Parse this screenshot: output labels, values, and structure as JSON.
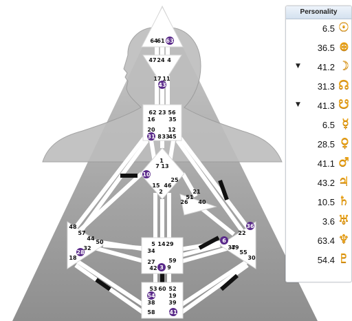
{
  "personality": {
    "title": "Personality",
    "accent_color": "#f0a818",
    "planets": [
      {
        "value": "6.5",
        "marker": "",
        "icon": "sun-icon",
        "glyph": "☉"
      },
      {
        "value": "36.5",
        "marker": "",
        "icon": "earth-icon",
        "glyph": "⊕"
      },
      {
        "value": "41.2",
        "marker": "▼",
        "icon": "moon-icon",
        "glyph": "☽"
      },
      {
        "value": "31.3",
        "marker": "",
        "icon": "north-node-icon",
        "glyph": "☊"
      },
      {
        "value": "41.3",
        "marker": "▼",
        "icon": "south-node-icon",
        "glyph": "☋"
      },
      {
        "value": "6.5",
        "marker": "",
        "icon": "mercury-icon",
        "glyph": "☿"
      },
      {
        "value": "28.5",
        "marker": "",
        "icon": "venus-icon",
        "glyph": "♀"
      },
      {
        "value": "41.1",
        "marker": "",
        "icon": "mars-icon",
        "glyph": "♂"
      },
      {
        "value": "43.2",
        "marker": "",
        "icon": "jupiter-icon",
        "glyph": "♃"
      },
      {
        "value": "10.5",
        "marker": "",
        "icon": "saturn-icon",
        "glyph": "♄"
      },
      {
        "value": "3.6",
        "marker": "",
        "icon": "uranus-icon",
        "glyph": "♅"
      },
      {
        "value": "63.4",
        "marker": "",
        "icon": "neptune-icon",
        "glyph": "♆"
      },
      {
        "value": "54.4",
        "marker": "",
        "icon": "pluto-icon",
        "glyph": "♇"
      }
    ]
  },
  "bodygraph": {
    "colors": {
      "background": "#9a9a9a",
      "center": "#ffffff",
      "channel_defined": "#111111",
      "gate_highlight": "#5a2a8a"
    },
    "gates": [
      {
        "n": "64"
      },
      {
        "n": "61"
      },
      {
        "n": "63",
        "active": true
      },
      {
        "n": "47"
      },
      {
        "n": "24"
      },
      {
        "n": "4"
      },
      {
        "n": "17"
      },
      {
        "n": "11"
      },
      {
        "n": "43",
        "active": true
      },
      {
        "n": "62"
      },
      {
        "n": "23"
      },
      {
        "n": "56"
      },
      {
        "n": "16"
      },
      {
        "n": "35"
      },
      {
        "n": "20"
      },
      {
        "n": "12"
      },
      {
        "n": "31",
        "active": true
      },
      {
        "n": "8"
      },
      {
        "n": "33"
      },
      {
        "n": "45"
      },
      {
        "n": "1"
      },
      {
        "n": "7"
      },
      {
        "n": "13"
      },
      {
        "n": "10",
        "active": true
      },
      {
        "n": "25"
      },
      {
        "n": "15"
      },
      {
        "n": "46"
      },
      {
        "n": "2"
      },
      {
        "n": "21"
      },
      {
        "n": "51"
      },
      {
        "n": "26"
      },
      {
        "n": "40"
      },
      {
        "n": "48"
      },
      {
        "n": "57"
      },
      {
        "n": "44"
      },
      {
        "n": "50"
      },
      {
        "n": "32"
      },
      {
        "n": "28",
        "active": true
      },
      {
        "n": "18"
      },
      {
        "n": "36",
        "active": true
      },
      {
        "n": "22"
      },
      {
        "n": "6",
        "active": true
      },
      {
        "n": "37"
      },
      {
        "n": "49"
      },
      {
        "n": "55"
      },
      {
        "n": "30"
      },
      {
        "n": "5"
      },
      {
        "n": "14"
      },
      {
        "n": "29"
      },
      {
        "n": "34"
      },
      {
        "n": "27"
      },
      {
        "n": "59"
      },
      {
        "n": "42"
      },
      {
        "n": "3",
        "active": true
      },
      {
        "n": "9"
      },
      {
        "n": "53"
      },
      {
        "n": "60"
      },
      {
        "n": "52"
      },
      {
        "n": "54",
        "active": true
      },
      {
        "n": "19"
      },
      {
        "n": "38"
      },
      {
        "n": "39"
      },
      {
        "n": "58"
      },
      {
        "n": "41",
        "active": true
      }
    ]
  }
}
